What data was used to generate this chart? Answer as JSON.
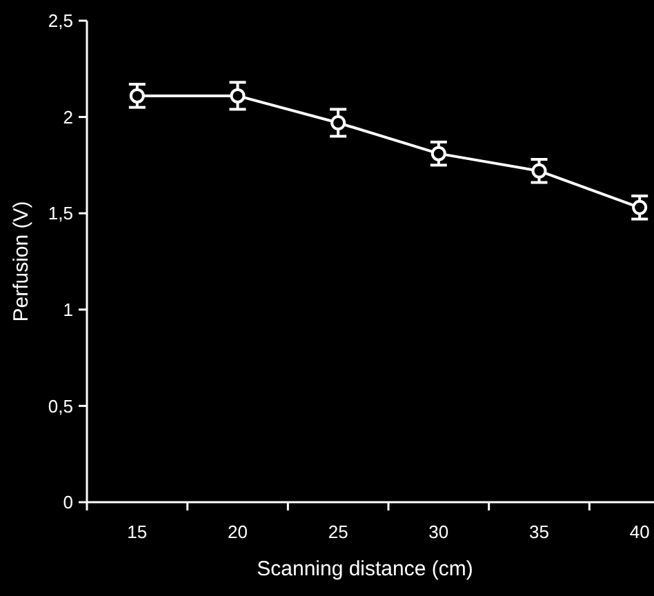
{
  "chart_data": {
    "type": "line",
    "xlabel": "Scanning distance (cm)",
    "ylabel": "Perfusion (V)",
    "categories": [
      "15",
      "20",
      "25",
      "30",
      "35",
      "40"
    ],
    "series": [
      {
        "color": "#ffffff",
        "values": [
          2.11,
          2.11,
          1.97,
          1.81,
          1.72,
          1.53
        ],
        "errors": [
          0.06,
          0.07,
          0.07,
          0.06,
          0.06,
          0.06
        ]
      }
    ],
    "ylim": [
      0,
      2.5
    ],
    "yticks": [
      0,
      {
        "value": 0.5,
        "label": "0,5"
      },
      1,
      {
        "value": 1.5,
        "label": "1,5"
      },
      2,
      {
        "value": 2.5,
        "label": "2,5"
      }
    ],
    "marker": "circle",
    "line_style": "solid",
    "grid": false
  }
}
